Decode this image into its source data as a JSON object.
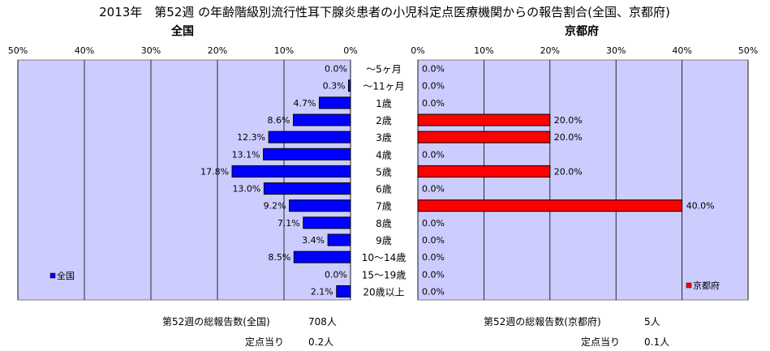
{
  "title": "2013年　第52週 の年齢階級別流行性耳下腺炎患者の小児科定点医療機関からの報告割合(全国、京都府)",
  "categories": [
    "～5ヶ月",
    "～11ヶ月",
    "1歳",
    "2歳",
    "3歳",
    "4歳",
    "5歳",
    "6歳",
    "7歳",
    "8歳",
    "9歳",
    "10～14歳",
    "15～19歳",
    "20歳以上"
  ],
  "chart_data": [
    {
      "type": "bar",
      "title": "全国",
      "orientation": "horizontal",
      "direction": "right-to-left",
      "xlim": [
        0,
        50
      ],
      "x_ticks": [
        "50%",
        "40%",
        "30%",
        "20%",
        "10%",
        "0%"
      ],
      "grid": true,
      "legend": "bottom-left",
      "series": [
        {
          "name": "全国",
          "color": "#0000ff",
          "values": [
            0.0,
            0.3,
            4.7,
            8.6,
            12.3,
            13.1,
            17.8,
            13.0,
            9.2,
            7.1,
            3.4,
            8.5,
            0.0,
            2.1
          ],
          "labels": [
            "0.0%",
            "0.3%",
            "4.7%",
            "8.6%",
            "12.3%",
            "13.1%",
            "17.8%",
            "13.0%",
            "9.2%",
            "7.1%",
            "3.4%",
            "8.5%",
            "0.0%",
            "2.1%"
          ]
        }
      ]
    },
    {
      "type": "bar",
      "title": "京都府",
      "orientation": "horizontal",
      "direction": "left-to-right",
      "xlim": [
        0,
        50
      ],
      "x_ticks": [
        "0%",
        "10%",
        "20%",
        "30%",
        "40%",
        "50%"
      ],
      "grid": true,
      "legend": "bottom-right",
      "series": [
        {
          "name": "京都府",
          "color": "#ff0000",
          "values": [
            0.0,
            0.0,
            0.0,
            20.0,
            20.0,
            0.0,
            20.0,
            0.0,
            40.0,
            0.0,
            0.0,
            0.0,
            0.0,
            0.0
          ],
          "labels": [
            "0.0%",
            "0.0%",
            "0.0%",
            "20.0%",
            "20.0%",
            "0.0%",
            "20.0%",
            "0.0%",
            "40.0%",
            "0.0%",
            "0.0%",
            "0.0%",
            "0.0%",
            "0.0%"
          ]
        }
      ]
    }
  ],
  "plot_bg": "#ccccff",
  "footer": {
    "national_total_label": "第52週の総報告数(全国)",
    "national_total_value": "708人",
    "national_per_label": "定点当り",
    "national_per_value": "0.2人",
    "kyoto_total_label": "第52週の総報告数(京都府)",
    "kyoto_total_value": "5人",
    "kyoto_per_label": "定点当り",
    "kyoto_per_value": "0.1人"
  }
}
